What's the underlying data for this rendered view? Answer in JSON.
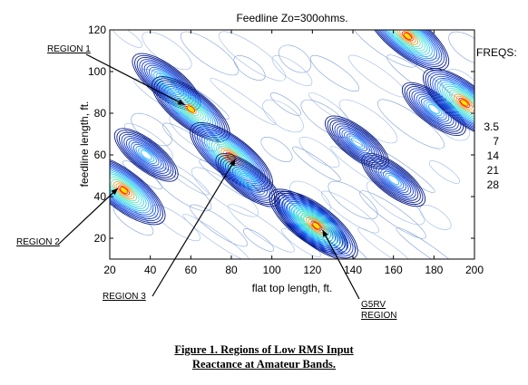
{
  "chart_data": {
    "type": "contour",
    "title": "Feedline Zo=300ohms.",
    "xlabel": "flat top length, ft.",
    "ylabel": "feedline length, ft.",
    "xlim": [
      20,
      200
    ],
    "ylim": [
      10,
      120
    ],
    "xticks": [
      20,
      40,
      60,
      80,
      100,
      120,
      140,
      160,
      180,
      200
    ],
    "yticks": [
      20,
      40,
      60,
      80,
      100,
      120
    ],
    "grid": false,
    "legend": {
      "heading": "FREQS:",
      "entries": [
        "3.5",
        "7",
        "14",
        "21",
        "28"
      ],
      "position": "right"
    },
    "hotspots": [
      {
        "x": 27,
        "y": 43,
        "strength": 1.0
      },
      {
        "x": 48,
        "y": 95,
        "strength": 0.6
      },
      {
        "x": 60,
        "y": 82,
        "strength": 0.9
      },
      {
        "x": 80,
        "y": 59,
        "strength": 1.0
      },
      {
        "x": 88,
        "y": 48,
        "strength": 0.55
      },
      {
        "x": 118,
        "y": 28,
        "strength": 0.85
      },
      {
        "x": 122,
        "y": 26,
        "strength": 1.0
      },
      {
        "x": 160,
        "y": 48,
        "strength": 0.45
      },
      {
        "x": 167,
        "y": 117,
        "strength": 1.0
      },
      {
        "x": 180,
        "y": 82,
        "strength": 0.5
      },
      {
        "x": 195,
        "y": 85,
        "strength": 1.0
      },
      {
        "x": 142,
        "y": 66,
        "strength": 0.45
      },
      {
        "x": 38,
        "y": 60,
        "strength": 0.5
      }
    ],
    "annotations": [
      {
        "label": "REGION 1",
        "arrow_to": {
          "x": 57,
          "y": 84
        }
      },
      {
        "label": "REGION 2",
        "arrow_to": {
          "x": 24,
          "y": 44
        }
      },
      {
        "label": "REGION 3",
        "arrow_to": {
          "x": 82,
          "y": 58
        }
      },
      {
        "label": "G5RV REGION",
        "arrow_to": {
          "x": 125,
          "y": 24
        }
      }
    ]
  },
  "caption": {
    "line1": "Figure 1.  Regions of Low RMS Input",
    "line2": "Reactance at Amateur Bands."
  },
  "colors": {
    "background": "#ffffff",
    "contour_low": "#0a1e8c",
    "contour_mid": "#28a0ff",
    "contour_high": "#ff2a00",
    "peak": "#ffe600"
  }
}
